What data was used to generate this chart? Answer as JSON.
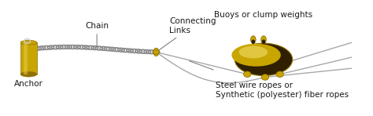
{
  "background_color": "#ffffff",
  "labels": {
    "anchor": "Anchor",
    "chain": "Chain",
    "connecting_links": "Connecting\nLinks",
    "buoys": "Buoys or clump weights",
    "steel_wire": "Steel wire ropes or\nSynthetic (polyester) fiber ropes"
  },
  "colors": {
    "anchor_body": "#c8a500",
    "anchor_dark": "#907000",
    "buoy_body": "#c8a500",
    "buoy_light": "#e8d050",
    "buoy_dark": "#302000",
    "chain": "#888888",
    "rope": "#a8a8a8",
    "connector": "#c8a500",
    "connector_dark": "#907000",
    "text": "#1a1a1a",
    "ann_line": "#707070",
    "background": "#ffffff"
  },
  "figsize": [
    4.74,
    1.48
  ],
  "dpi": 100
}
